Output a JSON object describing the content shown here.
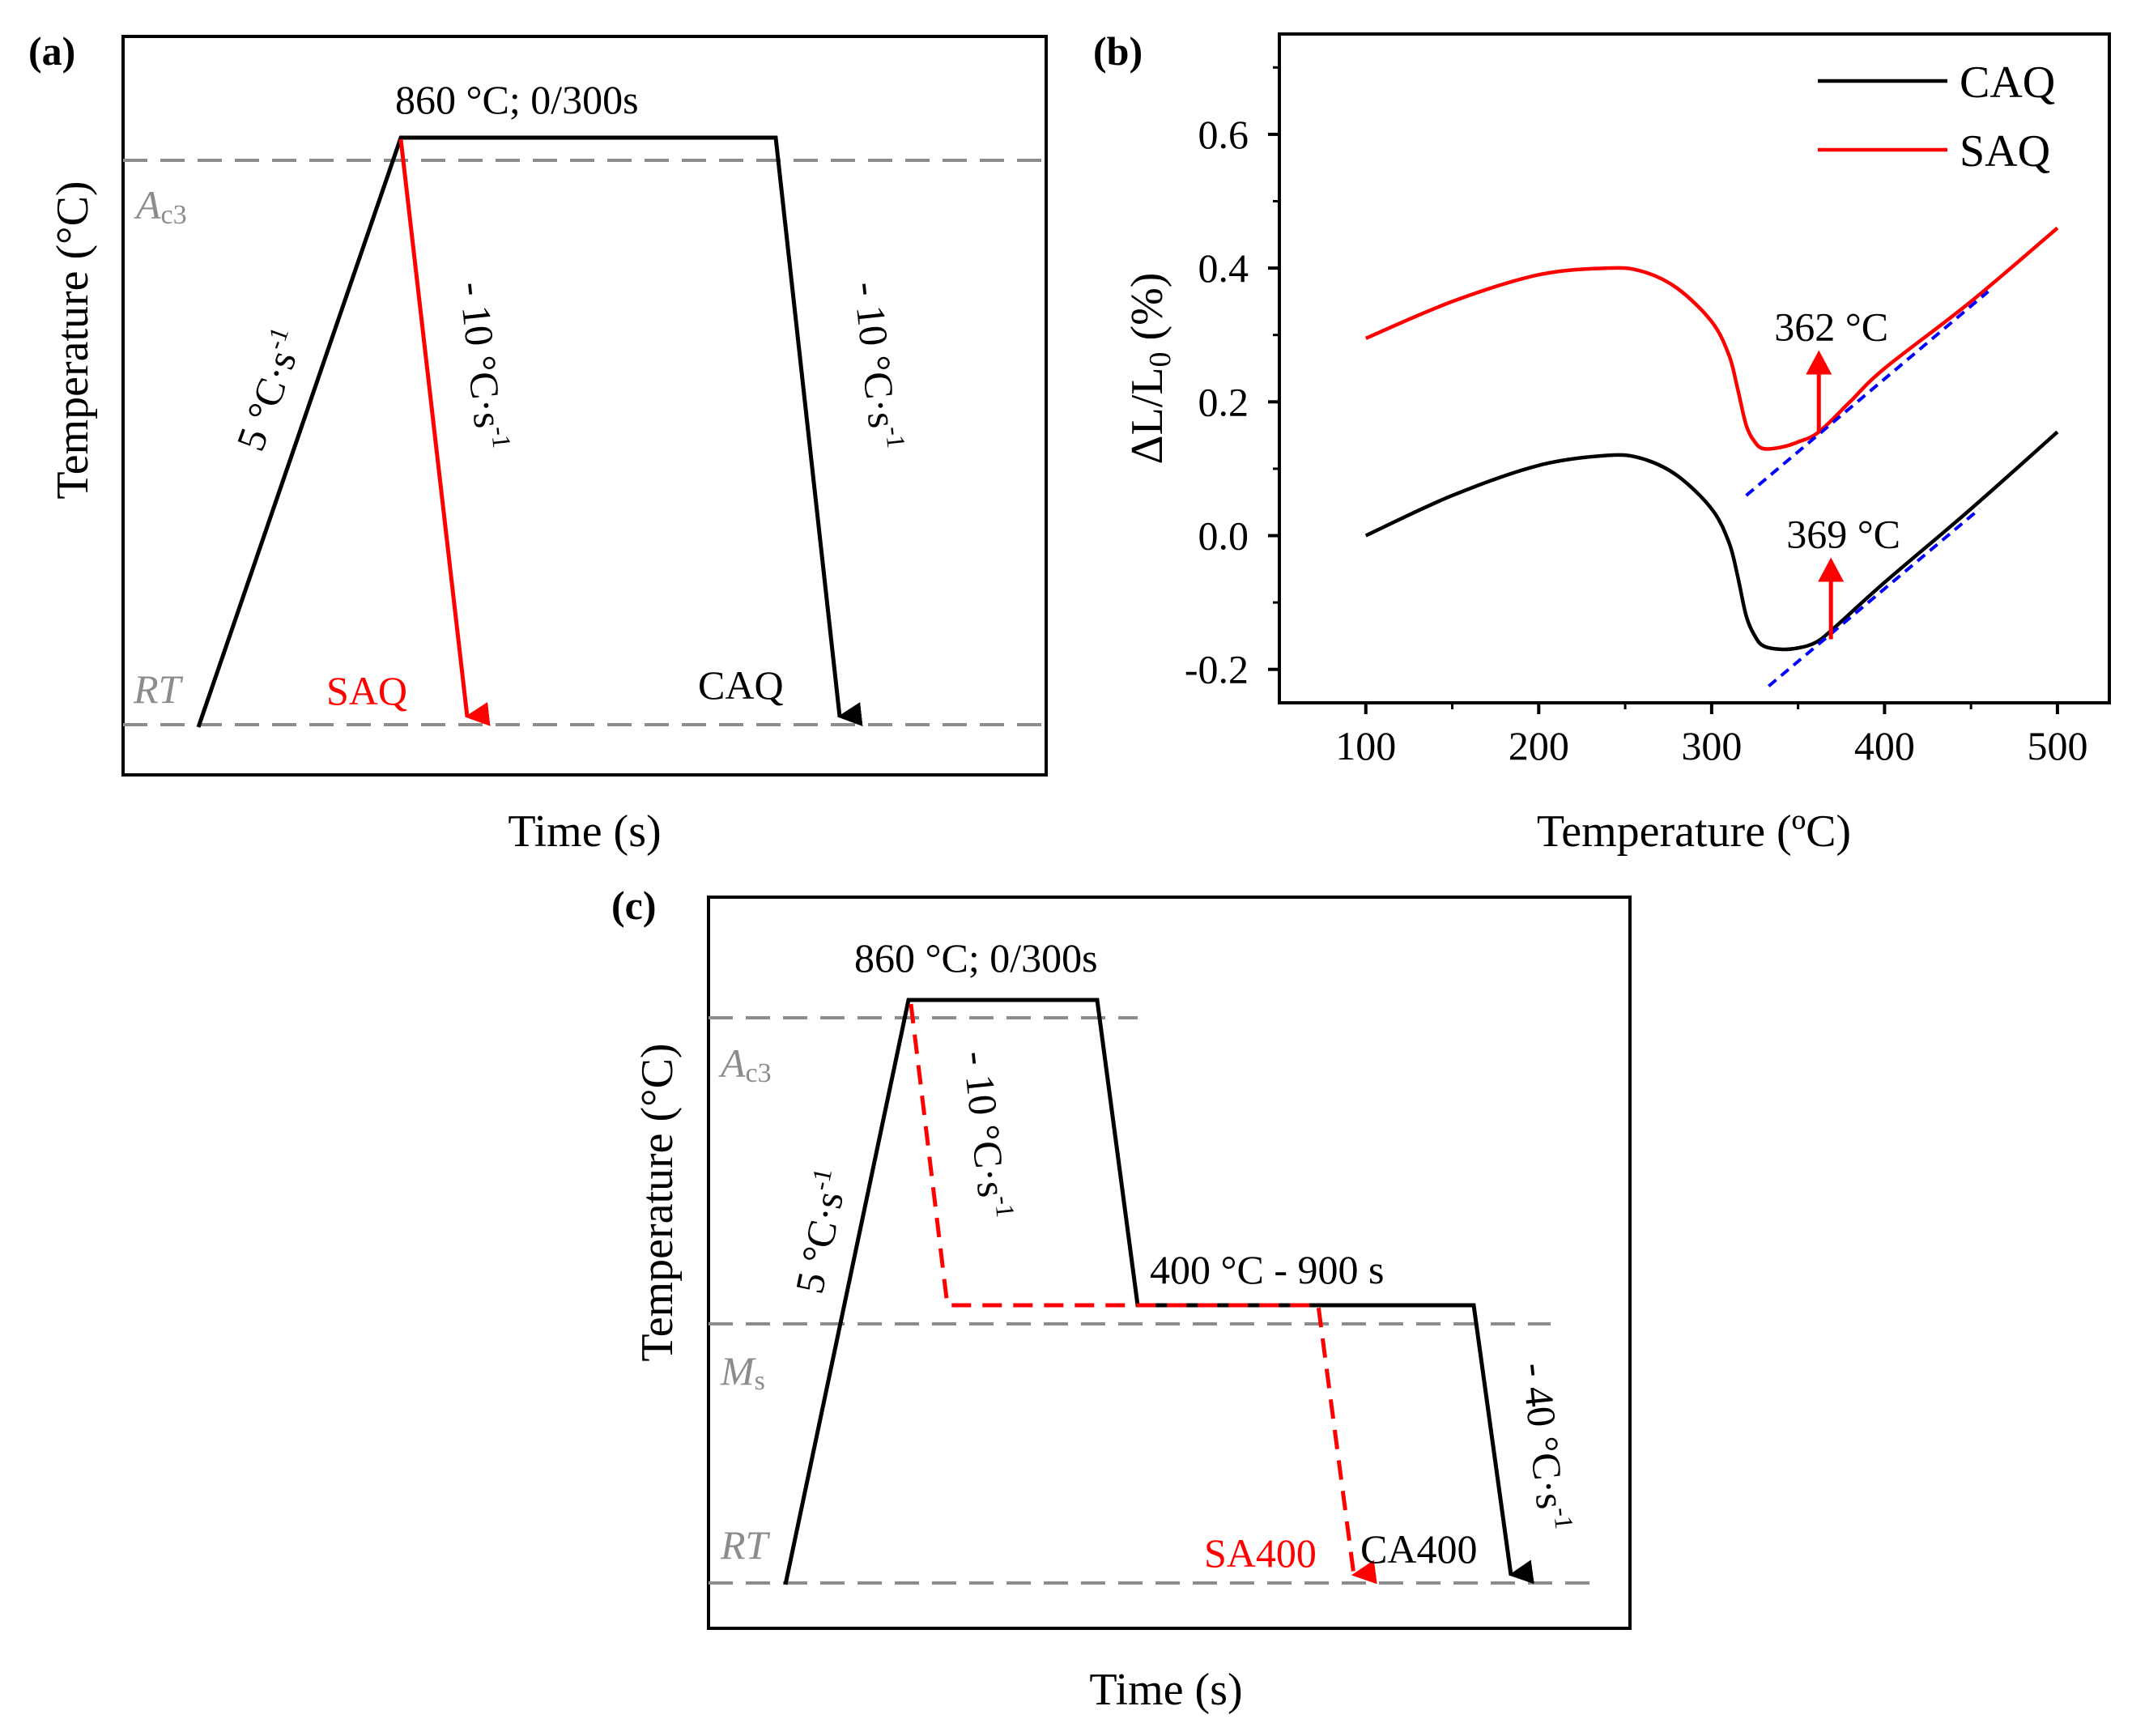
{
  "panels": {
    "a": {
      "letter": "(a)",
      "ylabel": "Temperature (°C)",
      "xlabel": "Time (s)",
      "hold_label": "860 °C; 0/300s",
      "ac3": "A",
      "ac3_sub": "c3",
      "rt": "RT",
      "heat_rate": "5 °C·s",
      "heat_rate_sup": "-1",
      "cool_red": "- 10 °C·s",
      "cool_red_sup": "-1",
      "cool_black": "- 10 °C·s",
      "cool_black_sup": "-1",
      "saq": "SAQ",
      "caq": "CAQ"
    },
    "b": {
      "letter": "(b)",
      "ylabel_main": "ΔL/L",
      "ylabel_sub": "0",
      "ylabel_unit": " (%)",
      "xlabel": "Temperature (ºC)",
      "ann_saq": "362 °C",
      "ann_caq": "369 °C"
    },
    "c": {
      "letter": "(c)",
      "ylabel": "Temperature (°C)",
      "xlabel": "Time (s)",
      "hold_label": "860 °C; 0/300s",
      "iso_label": "400 °C - 900 s",
      "ac3": "A",
      "ac3_sub": "c3",
      "ms": "M",
      "ms_sub": "s",
      "rt": "RT",
      "heat_rate": "5 °C·s",
      "heat_rate_sup": "-1",
      "cool_red": "- 10 °C·s",
      "cool_red_sup": "-1",
      "cool_final": "- 40 °C·s",
      "cool_final_sup": "-1",
      "sa400": "SA400",
      "ca400": "CA400"
    }
  },
  "colors": {
    "caq": "#000000",
    "saq": "#ff0000",
    "tangent": "#0000ff",
    "reference": "#8c8c8c"
  },
  "chart_data": {
    "type": "line",
    "xlabel": "Temperature (ºC)",
    "ylabel": "ΔL/L0 (%)",
    "xlim": [
      50,
      530
    ],
    "ylim": [
      -0.25,
      0.75
    ],
    "xticks": [
      "100",
      "200",
      "300",
      "400",
      "500"
    ],
    "yticks": [
      "-0.2",
      "0.0",
      "0.2",
      "0.4",
      "0.6"
    ],
    "legend_position": "top-right",
    "series": [
      {
        "name": "CAQ",
        "color": "#000000",
        "x": [
          100,
          150,
          200,
          240,
          260,
          280,
          300,
          310,
          315,
          320,
          325,
          330,
          340,
          350,
          360,
          370,
          400,
          450,
          500
        ],
        "y": [
          0.0,
          0.06,
          0.105,
          0.12,
          0.115,
          0.09,
          0.04,
          -0.01,
          -0.06,
          -0.12,
          -0.15,
          -0.165,
          -0.17,
          -0.168,
          -0.16,
          -0.14,
          -0.07,
          0.04,
          0.155
        ]
      },
      {
        "name": "SAQ",
        "color": "#ff0000",
        "x": [
          100,
          150,
          200,
          240,
          260,
          280,
          300,
          310,
          315,
          320,
          325,
          330,
          340,
          350,
          362,
          380,
          400,
          450,
          500
        ],
        "y": [
          0.295,
          0.35,
          0.39,
          0.4,
          0.395,
          0.37,
          0.32,
          0.27,
          0.22,
          0.165,
          0.14,
          0.13,
          0.132,
          0.14,
          0.155,
          0.2,
          0.25,
          0.35,
          0.46
        ]
      }
    ],
    "tangent_lines": [
      {
        "x": [
          320,
          460
        ],
        "y": [
          0.06,
          0.365
        ],
        "color": "#0000ff",
        "style": "dashed"
      },
      {
        "x": [
          333,
          455
        ],
        "y": [
          -0.225,
          0.04
        ],
        "color": "#0000ff",
        "style": "dashed"
      }
    ],
    "annotations": [
      {
        "text": "362 °C",
        "arrow_x": 362,
        "arrow_from_y": 0.155,
        "arrow_to_y": 0.27
      },
      {
        "text": "369 °C",
        "arrow_x": 369,
        "arrow_from_y": -0.155,
        "arrow_to_y": -0.04
      }
    ]
  }
}
